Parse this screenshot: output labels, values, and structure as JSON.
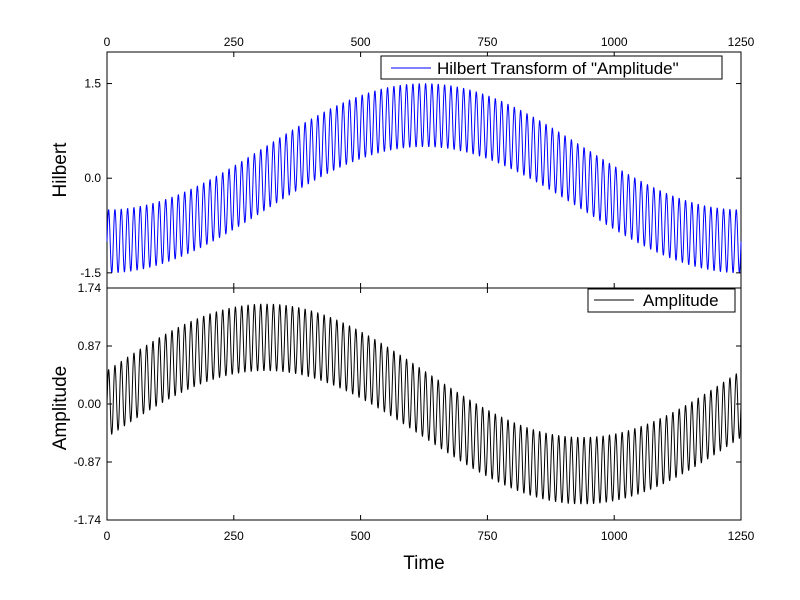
{
  "chart_data": [
    {
      "type": "line",
      "panel": "top",
      "ylabel": "Hilbert",
      "x_ticks": [
        "0",
        "250",
        "500",
        "750",
        "1000",
        "1250"
      ],
      "y_ticks": [
        "-1.5",
        "0.0",
        "1.5"
      ],
      "xlim": [
        0,
        1250
      ],
      "ylim": [
        -1.74,
        2.0
      ],
      "grid": false,
      "legend_position": "top-right",
      "series": [
        {
          "name": "Hilbert Transform of \"Amplitude\"",
          "color": "#0000ff",
          "signal": {
            "form": "carrier_times_envelope",
            "carrier_cycles_per_1250": 100,
            "carrier_amplitude": 0.5,
            "envelope": {
              "mean": 0.0,
              "amplitude": 1.0,
              "peak_x": 625,
              "period": 1250
            }
          }
        }
      ]
    },
    {
      "type": "line",
      "panel": "bottom",
      "xlabel": "Time",
      "ylabel": "Amplitude",
      "x_ticks": [
        "0",
        "250",
        "500",
        "750",
        "1000",
        "1250"
      ],
      "y_ticks": [
        "-1.74",
        "-0.87",
        "0.00",
        "0.87",
        "1.74"
      ],
      "xlim": [
        0,
        1250
      ],
      "ylim": [
        -1.74,
        1.74
      ],
      "grid": false,
      "legend_position": "top-right",
      "series": [
        {
          "name": "Amplitude",
          "color": "#000000",
          "signal": {
            "form": "carrier_times_envelope",
            "carrier_cycles_per_1250": 100,
            "carrier_amplitude": 0.5,
            "envelope": {
              "mean": 0.0,
              "amplitude": 1.0,
              "peak_x": 312.5,
              "period": 1250
            }
          }
        }
      ]
    }
  ]
}
